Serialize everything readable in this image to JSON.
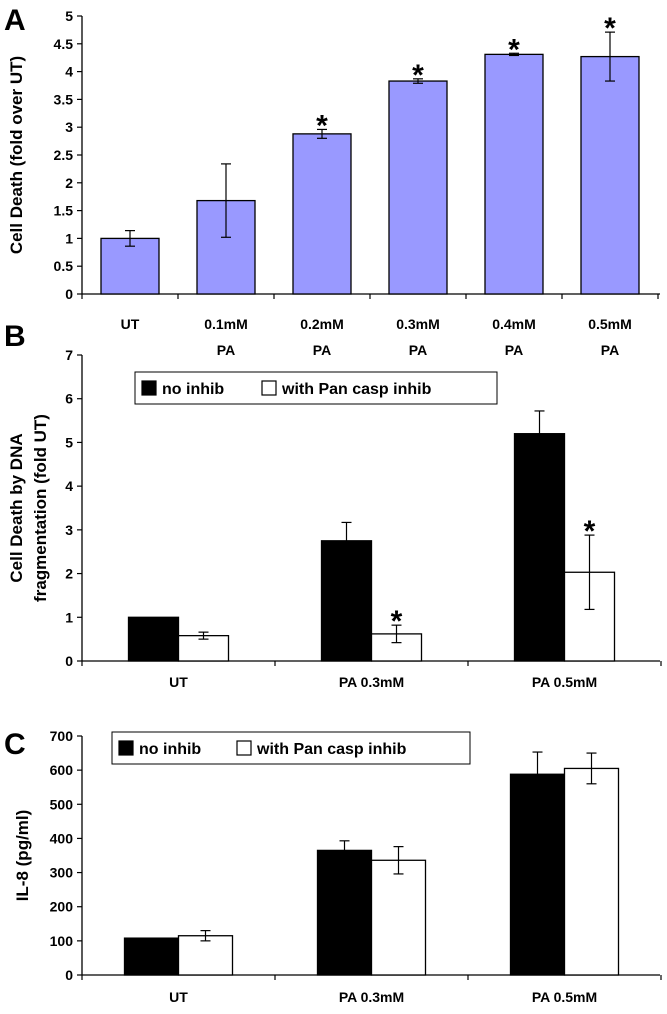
{
  "chart_data": [
    {
      "panel": "A",
      "type": "bar",
      "ylabel": "Cell Death (fold over UT)",
      "ylim": [
        0,
        5
      ],
      "yticks": [
        0,
        0.5,
        1,
        1.5,
        2,
        2.5,
        3,
        3.5,
        4,
        4.5,
        5
      ],
      "ytick_labels": [
        "0",
        "0.5",
        "1",
        "1.5",
        "2",
        "2.5",
        "3",
        "3.5",
        "4",
        "4.5",
        "5"
      ],
      "categories": [
        [
          "UT"
        ],
        [
          "0.1mM",
          "PA"
        ],
        [
          "0.2mM",
          "PA"
        ],
        [
          "0.3mM",
          "PA"
        ],
        [
          "0.4mM",
          "PA"
        ],
        [
          "0.5mM",
          "PA"
        ]
      ],
      "series": [
        {
          "color": "#9999ff",
          "values": [
            1.0,
            1.68,
            2.88,
            3.83,
            4.31,
            4.27
          ],
          "errors": [
            0.14,
            0.66,
            0.08,
            0.04,
            0.02,
            0.44
          ]
        }
      ],
      "annotations": [
        {
          "text": "*",
          "category": 2,
          "series": 0
        },
        {
          "text": "*",
          "category": 3,
          "series": 0
        },
        {
          "text": "*",
          "category": 4,
          "series": 0
        },
        {
          "text": "*",
          "category": 5,
          "series": 0
        }
      ],
      "grid": false
    },
    {
      "panel": "B",
      "type": "bar",
      "ylabel_lines": [
        "Cell Death by DNA",
        "fragmentation (fold UT)"
      ],
      "ylim": [
        0,
        7
      ],
      "yticks": [
        0,
        1,
        2,
        3,
        4,
        5,
        6,
        7
      ],
      "ytick_labels": [
        "0",
        "1",
        "2",
        "3",
        "4",
        "5",
        "6",
        "7"
      ],
      "categories": [
        [
          "UT"
        ],
        [
          "PA 0.3mM"
        ],
        [
          "PA 0.5mM"
        ]
      ],
      "series": [
        {
          "name": "no inhib",
          "color": "#000000",
          "values": [
            1.0,
            2.75,
            5.2
          ],
          "errors": [
            0,
            0.42,
            0.52
          ]
        },
        {
          "name": "with Pan casp inhib",
          "color": "#ffffff",
          "values": [
            0.58,
            0.62,
            2.03
          ],
          "errors": [
            0.08,
            0.2,
            0.85
          ]
        }
      ],
      "annotations": [
        {
          "text": "*",
          "category": 1,
          "series": 1
        },
        {
          "text": "*",
          "category": 2,
          "series": 1
        }
      ],
      "legend": "top",
      "grid": false
    },
    {
      "panel": "C",
      "type": "bar",
      "ylabel": "IL-8 (pg/ml)",
      "ylim": [
        0,
        700
      ],
      "yticks": [
        0,
        100,
        200,
        300,
        400,
        500,
        600,
        700
      ],
      "ytick_labels": [
        "0",
        "100",
        "200",
        "300",
        "400",
        "500",
        "600",
        "700"
      ],
      "categories": [
        [
          "UT"
        ],
        [
          "PA 0.3mM"
        ],
        [
          "PA 0.5mM"
        ]
      ],
      "series": [
        {
          "name": "no inhib",
          "color": "#000000",
          "values": [
            108,
            365,
            588
          ],
          "errors": [
            0,
            28,
            65
          ]
        },
        {
          "name": "with Pan casp inhib",
          "color": "#ffffff",
          "values": [
            115,
            336,
            605
          ],
          "errors": [
            15,
            40,
            45
          ]
        }
      ],
      "annotations": [],
      "legend": "top",
      "grid": false
    }
  ]
}
